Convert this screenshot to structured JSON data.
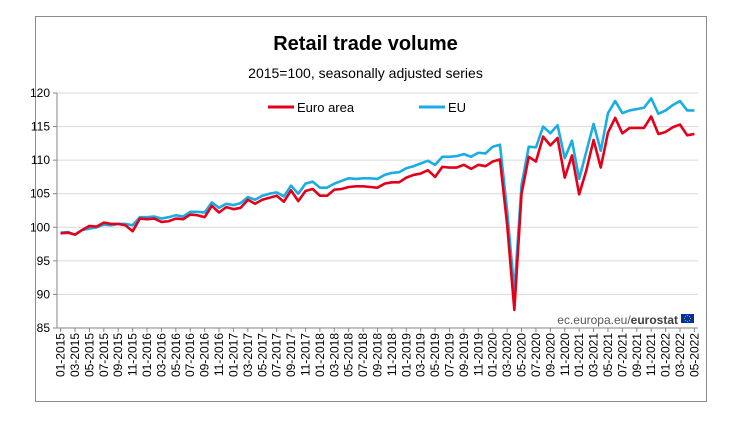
{
  "chart_data": {
    "type": "line",
    "title": "Retail trade volume",
    "subtitle": "2015=100, seasonally adjusted series",
    "xlabel": "",
    "ylabel": "",
    "ylim": [
      85,
      120
    ],
    "yticks": [
      85,
      90,
      95,
      100,
      105,
      110,
      115,
      120
    ],
    "grid": "horizontal",
    "legend": "top",
    "source": "ec.europa.eu/",
    "source_brand": "eurostat",
    "xtick_labels": [
      "01-2015",
      "03-2015",
      "05-2015",
      "07-2015",
      "09-2015",
      "11-2015",
      "01-2016",
      "03-2016",
      "05-2016",
      "07-2016",
      "09-2016",
      "11-2016",
      "01-2017",
      "03-2017",
      "05-2017",
      "07-2017",
      "09-2017",
      "11-2017",
      "01-2018",
      "03-2018",
      "05-2018",
      "07-2018",
      "09-2018",
      "11-2018",
      "01-2019",
      "03-2019",
      "05-2019",
      "07-2019",
      "09-2019",
      "11-2019",
      "01-2020",
      "03-2020",
      "05-2020",
      "07-2020",
      "09-2020",
      "11-2020",
      "01-2021",
      "03-2021",
      "05-2021",
      "07-2021",
      "09-2021",
      "11-2021",
      "01-2022",
      "03-2022",
      "05-2022"
    ],
    "series": [
      {
        "name": "Euro area",
        "color": "#e3001a",
        "values": [
          99.1,
          99.2,
          98.9,
          99.6,
          100.2,
          100.1,
          100.7,
          100.5,
          100.5,
          100.3,
          99.4,
          101.3,
          101.2,
          101.3,
          100.8,
          100.9,
          101.3,
          101.2,
          101.9,
          101.8,
          101.5,
          103.2,
          102.2,
          103.0,
          102.7,
          102.9,
          104.1,
          103.5,
          104.1,
          104.4,
          104.7,
          103.8,
          105.5,
          103.9,
          105.4,
          105.7,
          104.7,
          104.7,
          105.6,
          105.7,
          106.0,
          106.1,
          106.1,
          106.0,
          105.9,
          106.5,
          106.7,
          106.7,
          107.4,
          107.8,
          108.0,
          108.5,
          107.5,
          109.0,
          108.9,
          108.9,
          109.3,
          108.7,
          109.3,
          109.1,
          109.8,
          110.1,
          100.4,
          87.7,
          105.0,
          110.5,
          109.8,
          113.5,
          112.2,
          113.3,
          107.4,
          110.7,
          104.9,
          108.5,
          113.0,
          108.9,
          114.1,
          116.3,
          114.0,
          114.8,
          114.8,
          114.8,
          116.5,
          113.9,
          114.2,
          114.9,
          115.3,
          113.7,
          113.9
        ]
      },
      {
        "name": "EU",
        "color": "#1aade4",
        "values": [
          99.2,
          99.3,
          98.9,
          99.6,
          99.8,
          100.0,
          100.4,
          100.3,
          100.5,
          100.5,
          100.3,
          101.5,
          101.5,
          101.6,
          101.3,
          101.5,
          101.8,
          101.6,
          102.3,
          102.3,
          102.2,
          103.7,
          102.9,
          103.5,
          103.3,
          103.6,
          104.5,
          104.1,
          104.7,
          105.0,
          105.2,
          104.6,
          106.2,
          105.0,
          106.5,
          106.8,
          105.9,
          105.9,
          106.5,
          106.9,
          107.3,
          107.2,
          107.3,
          107.3,
          107.2,
          107.8,
          108.1,
          108.2,
          108.8,
          109.1,
          109.5,
          109.9,
          109.3,
          110.5,
          110.5,
          110.6,
          110.9,
          110.5,
          111.1,
          111.0,
          112.0,
          112.3,
          102.5,
          90.4,
          106.3,
          112.0,
          111.9,
          115.0,
          114.0,
          115.2,
          110.3,
          112.9,
          107.2,
          111.3,
          115.4,
          111.4,
          117.0,
          118.8,
          117.0,
          117.4,
          117.6,
          117.8,
          119.2,
          116.9,
          117.4,
          118.2,
          118.8,
          117.4,
          117.4
        ]
      }
    ]
  }
}
